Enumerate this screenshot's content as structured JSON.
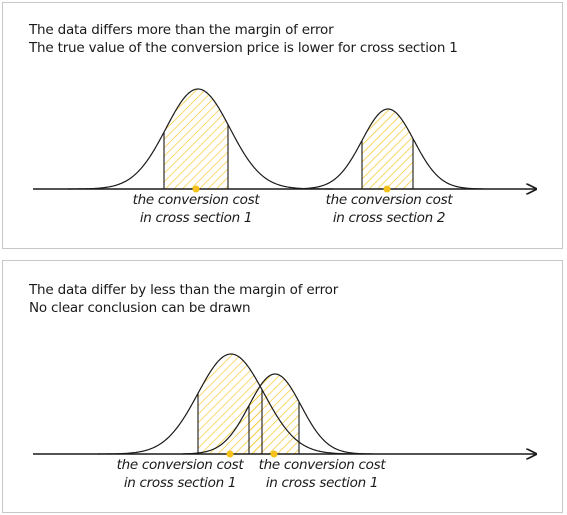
{
  "colors": {
    "hatch": "#f5c21b",
    "marker": "#f5c21b",
    "curve": "#1a1a1a",
    "border": "#c8c8c8"
  },
  "panels": [
    {
      "line1": "The data differs more than the margin of error",
      "line2": "The true value of the conversion price is lower for cross section 1",
      "labels": [
        {
          "l1": "the conversion cost",
          "l2": "in cross section 1"
        },
        {
          "l1": "the conversion cost",
          "l2": "in cross section 2"
        }
      ]
    },
    {
      "line1": "The data differ by less than the margin of error",
      "line2": "No clear conclusion can be drawn",
      "labels": [
        {
          "l1": "the conversion cost",
          "l2": "in cross section 1"
        },
        {
          "l1": "the conversion cost",
          "l2": "in cross section 1"
        }
      ]
    }
  ]
}
